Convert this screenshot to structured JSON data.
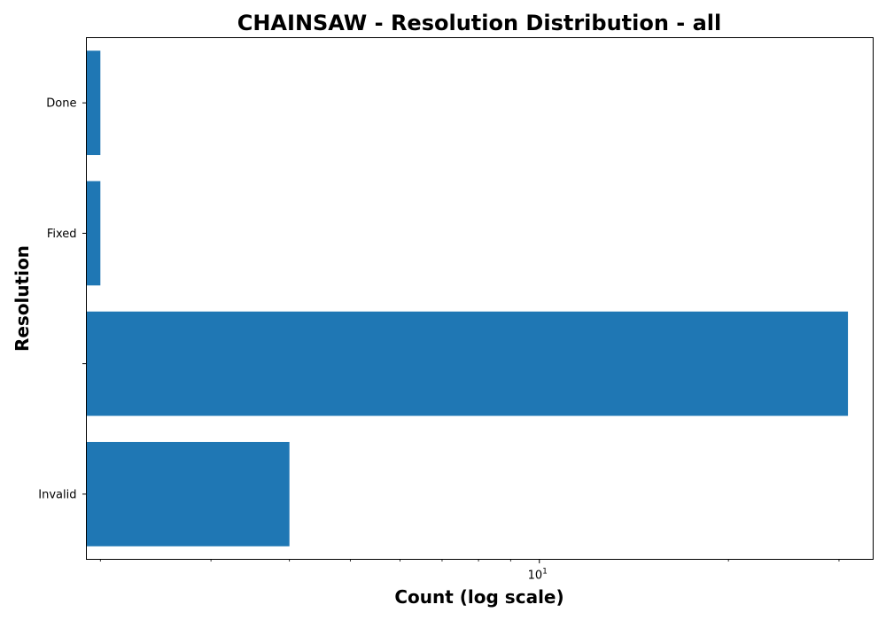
{
  "chart_data": {
    "type": "bar",
    "orientation": "horizontal",
    "title": "CHAINSAW - Resolution Distribution - all",
    "xlabel": "Count (log scale)",
    "ylabel": "Resolution",
    "x_scale": "log",
    "xlim": [
      1.9,
      34
    ],
    "x_ticks": [
      {
        "value": 10,
        "base": "10",
        "exp": "1"
      }
    ],
    "categories": [
      "Done",
      "Fixed",
      "",
      "Invalid"
    ],
    "values": [
      2,
      2,
      31,
      4
    ],
    "bar_color": "#1f77b4",
    "grid": false,
    "legend": "none"
  }
}
